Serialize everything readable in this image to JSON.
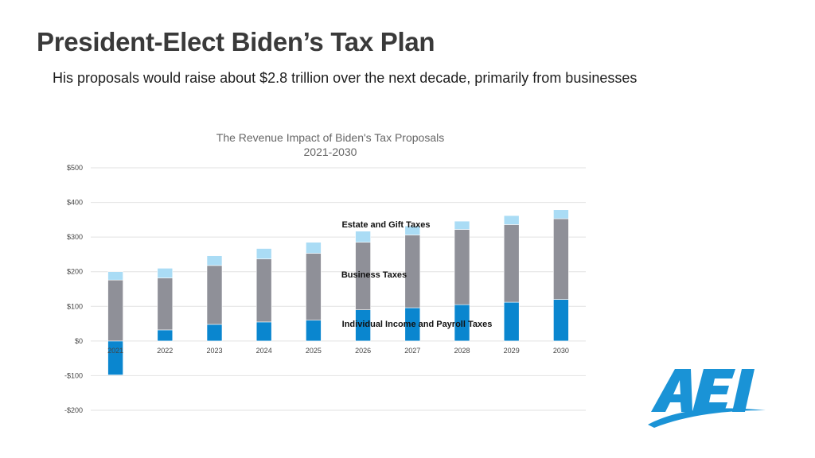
{
  "slide": {
    "title": "President-Elect Biden’s Tax Plan",
    "subtitle": "His proposals would raise about $2.8 trillion over the next decade, primarily from businesses"
  },
  "chart_data": {
    "type": "bar",
    "stacked": true,
    "title": "The Revenue Impact of Biden's Tax Proposals",
    "subtitle": "2021-2030",
    "categories": [
      "2021",
      "2022",
      "2023",
      "2024",
      "2025",
      "2026",
      "2027",
      "2028",
      "2029",
      "2030"
    ],
    "series": [
      {
        "name": "Individual Income and Payroll Taxes",
        "color": "#0a86cf",
        "values": [
          -98,
          32,
          48,
          55,
          60,
          90,
          96,
          105,
          112,
          120
        ]
      },
      {
        "name": "Business Taxes",
        "color": "#8f9098",
        "values": [
          176,
          150,
          170,
          182,
          193,
          195,
          210,
          217,
          224,
          233
        ]
      },
      {
        "name": "Estate and Gift Taxes",
        "color": "#aadcf5",
        "values": [
          24,
          28,
          28,
          30,
          32,
          32,
          26,
          24,
          26,
          26
        ]
      }
    ],
    "ylim": [
      -200,
      500
    ],
    "yticks": [
      -200,
      -100,
      0,
      100,
      200,
      300,
      400,
      500
    ],
    "ytick_labels": [
      "-$200",
      "-$100",
      "$0",
      "$100",
      "$200",
      "$300",
      "$400",
      "$500"
    ],
    "annotations": [
      {
        "text": "Estate and Gift Taxes"
      },
      {
        "text": "Business Taxes"
      },
      {
        "text": "Individual Income and Payroll Taxes"
      }
    ]
  },
  "logo": {
    "text": "AEI",
    "color": "#1a93d6"
  }
}
